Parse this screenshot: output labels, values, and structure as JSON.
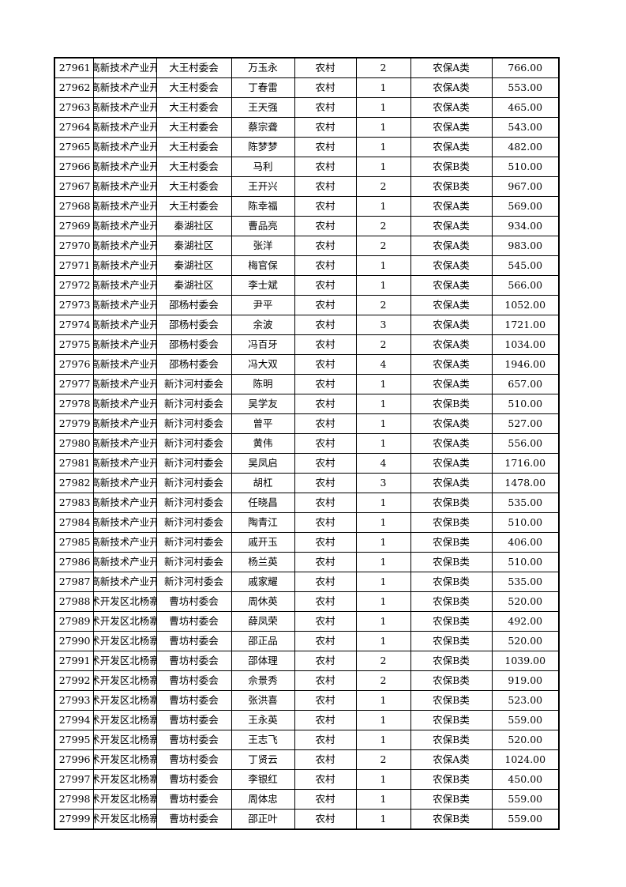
{
  "rows": [
    [
      "27961",
      "高新技术产业开",
      "大王村委会",
      "万玉永",
      "农村",
      "2",
      "农保A类",
      "766.00"
    ],
    [
      "27962",
      "高新技术产业开",
      "大王村委会",
      "丁春雷",
      "农村",
      "1",
      "农保A类",
      "553.00"
    ],
    [
      "27963",
      "高新技术产业开",
      "大王村委会",
      "王天强",
      "农村",
      "1",
      "农保A类",
      "465.00"
    ],
    [
      "27964",
      "高新技术产业开",
      "大王村委会",
      "蔡宗聋",
      "农村",
      "1",
      "农保A类",
      "543.00"
    ],
    [
      "27965",
      "高新技术产业开",
      "大王村委会",
      "陈梦梦",
      "农村",
      "1",
      "农保A类",
      "482.00"
    ],
    [
      "27966",
      "高新技术产业开",
      "大王村委会",
      "马利",
      "农村",
      "1",
      "农保B类",
      "510.00"
    ],
    [
      "27967",
      "高新技术产业开",
      "大王村委会",
      "王开兴",
      "农村",
      "2",
      "农保B类",
      "967.00"
    ],
    [
      "27968",
      "高新技术产业开",
      "大王村委会",
      "陈幸福",
      "农村",
      "1",
      "农保A类",
      "569.00"
    ],
    [
      "27969",
      "高新技术产业开",
      "秦湖社区",
      "曹品亮",
      "农村",
      "2",
      "农保A类",
      "934.00"
    ],
    [
      "27970",
      "高新技术产业开",
      "秦湖社区",
      "张洋",
      "农村",
      "2",
      "农保A类",
      "983.00"
    ],
    [
      "27971",
      "高新技术产业开",
      "秦湖社区",
      "梅官保",
      "农村",
      "1",
      "农保A类",
      "545.00"
    ],
    [
      "27972",
      "高新技术产业开",
      "秦湖社区",
      "李士斌",
      "农村",
      "1",
      "农保A类",
      "566.00"
    ],
    [
      "27973",
      "高新技术产业开",
      "邵杨村委会",
      "尹平",
      "农村",
      "2",
      "农保A类",
      "1052.00"
    ],
    [
      "27974",
      "高新技术产业开",
      "邵杨村委会",
      "余波",
      "农村",
      "3",
      "农保A类",
      "1721.00"
    ],
    [
      "27975",
      "高新技术产业开",
      "邵杨村委会",
      "冯百牙",
      "农村",
      "2",
      "农保A类",
      "1034.00"
    ],
    [
      "27976",
      "高新技术产业开",
      "邵杨村委会",
      "冯大双",
      "农村",
      "4",
      "农保A类",
      "1946.00"
    ],
    [
      "27977",
      "高新技术产业开",
      "新汴河村委会",
      "陈明",
      "农村",
      "1",
      "农保A类",
      "657.00"
    ],
    [
      "27978",
      "高新技术产业开",
      "新汴河村委会",
      "吴学友",
      "农村",
      "1",
      "农保B类",
      "510.00"
    ],
    [
      "27979",
      "高新技术产业开",
      "新汴河村委会",
      "曾平",
      "农村",
      "1",
      "农保A类",
      "527.00"
    ],
    [
      "27980",
      "高新技术产业开",
      "新汴河村委会",
      "黄伟",
      "农村",
      "1",
      "农保A类",
      "556.00"
    ],
    [
      "27981",
      "高新技术产业开",
      "新汴河村委会",
      "吴凤启",
      "农村",
      "4",
      "农保A类",
      "1716.00"
    ],
    [
      "27982",
      "高新技术产业开",
      "新汴河村委会",
      "胡杠",
      "农村",
      "3",
      "农保A类",
      "1478.00"
    ],
    [
      "27983",
      "高新技术产业开",
      "新汴河村委会",
      "任晓昌",
      "农村",
      "1",
      "农保B类",
      "535.00"
    ],
    [
      "27984",
      "高新技术产业开",
      "新汴河村委会",
      "陶青江",
      "农村",
      "1",
      "农保B类",
      "510.00"
    ],
    [
      "27985",
      "高新技术产业开",
      "新汴河村委会",
      "戚开玉",
      "农村",
      "1",
      "农保B类",
      "406.00"
    ],
    [
      "27986",
      "高新技术产业开",
      "新汴河村委会",
      "杨兰英",
      "农村",
      "1",
      "农保B类",
      "510.00"
    ],
    [
      "27987",
      "高新技术产业开",
      "新汴河村委会",
      "戚家耀",
      "农村",
      "1",
      "农保B类",
      "535.00"
    ],
    [
      "27988",
      "术开发区北杨寨",
      "曹坊村委会",
      "周休英",
      "农村",
      "1",
      "农保B类",
      "520.00"
    ],
    [
      "27989",
      "术开发区北杨寨",
      "曹坊村委会",
      "薛凤荣",
      "农村",
      "1",
      "农保B类",
      "492.00"
    ],
    [
      "27990",
      "术开发区北杨寨",
      "曹坊村委会",
      "邵正品",
      "农村",
      "1",
      "农保B类",
      "520.00"
    ],
    [
      "27991",
      "术开发区北杨寨",
      "曹坊村委会",
      "邵体理",
      "农村",
      "2",
      "农保B类",
      "1039.00"
    ],
    [
      "27992",
      "术开发区北杨寨",
      "曹坊村委会",
      "佘景秀",
      "农村",
      "2",
      "农保B类",
      "919.00"
    ],
    [
      "27993",
      "术开发区北杨寨",
      "曹坊村委会",
      "张洪喜",
      "农村",
      "1",
      "农保B类",
      "523.00"
    ],
    [
      "27994",
      "术开发区北杨寨",
      "曹坊村委会",
      "王永英",
      "农村",
      "1",
      "农保B类",
      "559.00"
    ],
    [
      "27995",
      "术开发区北杨寨",
      "曹坊村委会",
      "王志飞",
      "农村",
      "1",
      "农保B类",
      "520.00"
    ],
    [
      "27996",
      "术开发区北杨寨",
      "曹坊村委会",
      "丁贤云",
      "农村",
      "2",
      "农保A类",
      "1024.00"
    ],
    [
      "27997",
      "术开发区北杨寨",
      "曹坊村委会",
      "李银红",
      "农村",
      "1",
      "农保B类",
      "450.00"
    ],
    [
      "27998",
      "术开发区北杨寨",
      "曹坊村委会",
      "周体忠",
      "农村",
      "1",
      "农保B类",
      "559.00"
    ],
    [
      "27999",
      "术开发区北杨寨",
      "曹坊村委会",
      "邵正叶",
      "农村",
      "1",
      "农保B类",
      "559.00"
    ]
  ]
}
